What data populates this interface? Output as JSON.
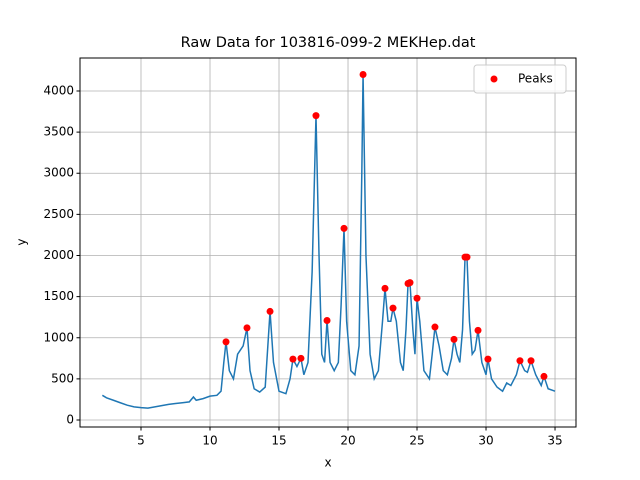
{
  "chart_data": {
    "type": "line",
    "title": "Raw Data for 103816-099-2 MEKHep.dat",
    "x_label": "x",
    "y_label": "y",
    "xlim": [
      0.58,
      36.52
    ],
    "ylim": [
      -85,
      4401
    ],
    "xticks": [
      5,
      10,
      15,
      20,
      25,
      30,
      35
    ],
    "yticks": [
      0,
      500,
      1000,
      1500,
      2000,
      2500,
      3000,
      3500,
      4000
    ],
    "grid": true,
    "legend": "upper right",
    "series": [
      {
        "type": "line",
        "color": "#1f77b4",
        "x": [
          2.2,
          2.5,
          3,
          3.5,
          4,
          4.5,
          5,
          5.5,
          6,
          6.5,
          7,
          7.5,
          8,
          8.5,
          8.8,
          9,
          9.5,
          10,
          10.5,
          10.8,
          11.0,
          11.16,
          11.4,
          11.7,
          12,
          12.2,
          12.4,
          12.68,
          12.9,
          13.2,
          13.6,
          14.0,
          14.35,
          14.6,
          15,
          15.5,
          15.8,
          16.01,
          16.3,
          16.59,
          16.8,
          17.1,
          17.4,
          17.68,
          17.9,
          18.1,
          18.3,
          18.48,
          18.7,
          19.0,
          19.3,
          19.5,
          19.71,
          19.9,
          20.2,
          20.5,
          20.8,
          21.0,
          21.09,
          21.3,
          21.6,
          21.9,
          22.2,
          22.5,
          22.68,
          22.9,
          23.1,
          23.26,
          23.5,
          23.8,
          24.0,
          24.2,
          24.35,
          24.49,
          24.7,
          24.85,
          25.0,
          25.2,
          25.5,
          25.9,
          26.1,
          26.3,
          26.6,
          26.9,
          27.2,
          27.5,
          27.68,
          27.9,
          28.1,
          28.3,
          28.48,
          28.62,
          28.8,
          29.0,
          29.2,
          29.42,
          29.7,
          30.0,
          30.14,
          30.4,
          30.8,
          31.2,
          31.5,
          31.8,
          32.2,
          32.46,
          32.8,
          33.0,
          33.26,
          33.6,
          34.0,
          34.2,
          34.5,
          35.0
        ],
        "values": [
          300,
          270,
          240,
          210,
          180,
          160,
          150,
          145,
          160,
          175,
          190,
          200,
          210,
          220,
          280,
          240,
          260,
          290,
          300,
          350,
          700,
          950,
          600,
          500,
          800,
          850,
          900,
          1120,
          600,
          380,
          340,
          400,
          1320,
          700,
          350,
          320,
          500,
          740,
          650,
          750,
          550,
          700,
          1800,
          3700,
          2000,
          800,
          700,
          1210,
          700,
          600,
          700,
          1400,
          2330,
          1200,
          600,
          550,
          900,
          3000,
          4200,
          2000,
          800,
          500,
          600,
          1200,
          1600,
          1200,
          1200,
          1360,
          1200,
          700,
          600,
          1100,
          1660,
          1670,
          1100,
          800,
          1480,
          1200,
          600,
          500,
          800,
          1130,
          900,
          600,
          550,
          750,
          980,
          800,
          700,
          1100,
          1980,
          1980,
          1200,
          800,
          850,
          1090,
          700,
          550,
          740,
          500,
          400,
          350,
          450,
          420,
          550,
          720,
          600,
          580,
          720,
          550,
          420,
          530,
          380,
          350
        ]
      },
      {
        "type": "scatter",
        "name": "Peaks",
        "color": "#ff0000",
        "x": [
          11.16,
          12.68,
          14.35,
          16.01,
          16.59,
          17.68,
          18.48,
          19.71,
          21.09,
          22.68,
          23.26,
          24.35,
          24.49,
          25.0,
          26.3,
          27.68,
          28.48,
          28.62,
          29.42,
          30.14,
          32.46,
          33.26,
          34.2
        ],
        "values": [
          950,
          1120,
          1320,
          740,
          750,
          3700,
          1210,
          2330,
          4200,
          1600,
          1360,
          1660,
          1670,
          1480,
          1130,
          980,
          1980,
          1980,
          1090,
          740,
          720,
          720,
          530
        ]
      }
    ]
  }
}
